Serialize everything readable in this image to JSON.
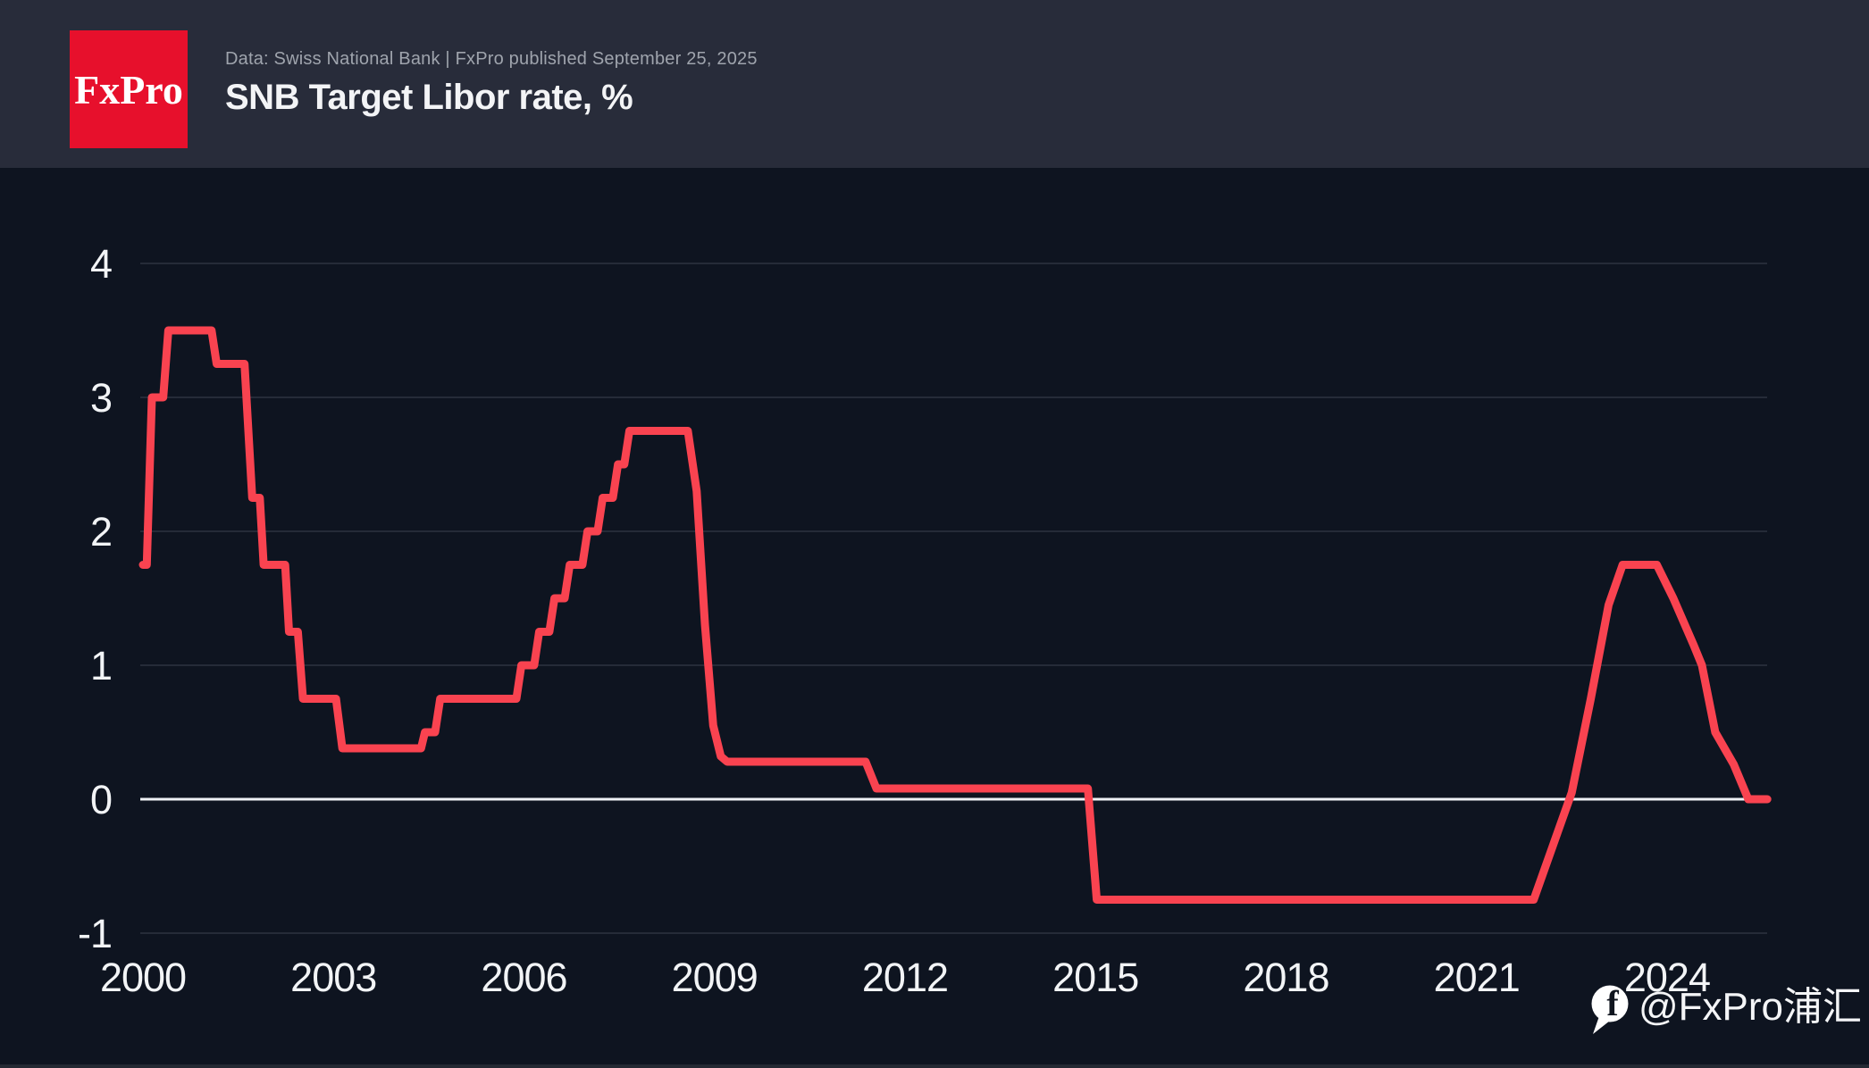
{
  "header": {
    "logo_text": "FxPro",
    "subtitle": "Data: Swiss National Bank | FxPro published September 25, 2025",
    "title": "SNB Target Libor rate, %"
  },
  "watermark": {
    "icon": "facebook-f-icon",
    "handle": "@FxPro浦汇"
  },
  "colors": {
    "page_bg": "#0e1420",
    "header_bg": "#282c3a",
    "logo_red": "#e7102c",
    "line_red": "#f94350",
    "grid": "#252b38",
    "zero_line": "#eef1f4",
    "text_primary": "#f2f4f6",
    "text_muted": "#9fa4ad"
  },
  "chart_data": {
    "type": "line",
    "title": "SNB Target Libor rate, %",
    "xlabel": "",
    "ylabel": "",
    "x_ticks": [
      2000,
      2003,
      2006,
      2009,
      2012,
      2015,
      2018,
      2021,
      2024
    ],
    "y_ticks": [
      4,
      3,
      2,
      1,
      0,
      -1
    ],
    "x_range": [
      2000,
      2025.62
    ],
    "y_range": [
      -1,
      4
    ],
    "grid": "horizontal-only",
    "zero_line_highlighted": true,
    "legend_position": "none",
    "series": [
      {
        "name": "SNB Target Libor rate, %",
        "color": "#f94350",
        "points": [
          [
            2000.0,
            1.75
          ],
          [
            2000.06,
            1.75
          ],
          [
            2000.14,
            3.0
          ],
          [
            2000.32,
            3.0
          ],
          [
            2000.4,
            3.5
          ],
          [
            2001.08,
            3.5
          ],
          [
            2001.16,
            3.25
          ],
          [
            2001.6,
            3.25
          ],
          [
            2001.72,
            2.25
          ],
          [
            2001.84,
            2.25
          ],
          [
            2001.9,
            1.75
          ],
          [
            2002.24,
            1.75
          ],
          [
            2002.3,
            1.25
          ],
          [
            2002.44,
            1.25
          ],
          [
            2002.52,
            0.75
          ],
          [
            2003.04,
            0.75
          ],
          [
            2003.14,
            0.38
          ],
          [
            2004.38,
            0.38
          ],
          [
            2004.44,
            0.5
          ],
          [
            2004.6,
            0.5
          ],
          [
            2004.68,
            0.75
          ],
          [
            2005.88,
            0.75
          ],
          [
            2005.96,
            1.0
          ],
          [
            2006.16,
            1.0
          ],
          [
            2006.24,
            1.25
          ],
          [
            2006.4,
            1.25
          ],
          [
            2006.48,
            1.5
          ],
          [
            2006.64,
            1.5
          ],
          [
            2006.72,
            1.75
          ],
          [
            2006.92,
            1.75
          ],
          [
            2007.0,
            2.0
          ],
          [
            2007.16,
            2.0
          ],
          [
            2007.24,
            2.25
          ],
          [
            2007.4,
            2.25
          ],
          [
            2007.48,
            2.5
          ],
          [
            2007.58,
            2.5
          ],
          [
            2007.66,
            2.75
          ],
          [
            2008.58,
            2.75
          ],
          [
            2008.72,
            2.3
          ],
          [
            2008.85,
            1.3
          ],
          [
            2008.98,
            0.55
          ],
          [
            2009.1,
            0.32
          ],
          [
            2009.2,
            0.28
          ],
          [
            2011.38,
            0.28
          ],
          [
            2011.55,
            0.08
          ],
          [
            2014.88,
            0.08
          ],
          [
            2015.02,
            -0.75
          ],
          [
            2021.9,
            -0.75
          ],
          [
            2022.2,
            -0.35
          ],
          [
            2022.5,
            0.05
          ],
          [
            2022.8,
            0.75
          ],
          [
            2023.08,
            1.45
          ],
          [
            2023.3,
            1.75
          ],
          [
            2023.84,
            1.75
          ],
          [
            2024.1,
            1.5
          ],
          [
            2024.42,
            1.15
          ],
          [
            2024.55,
            1.0
          ],
          [
            2024.76,
            0.5
          ],
          [
            2025.05,
            0.26
          ],
          [
            2025.28,
            0.0
          ],
          [
            2025.58,
            0.0
          ]
        ]
      }
    ]
  }
}
